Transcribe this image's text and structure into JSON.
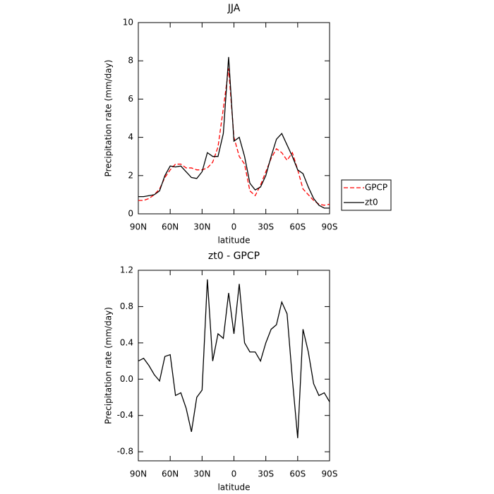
{
  "chart_data": [
    {
      "type": "line",
      "title": "JJA",
      "xlabel": "latitude",
      "ylabel": "Precipitation rate (mm/day)",
      "x": [
        90,
        85,
        80,
        75,
        70,
        65,
        60,
        55,
        50,
        45,
        40,
        35,
        30,
        25,
        20,
        15,
        10,
        5,
        0,
        -5,
        -10,
        -15,
        -20,
        -25,
        -30,
        -35,
        -40,
        -45,
        -50,
        -55,
        -60,
        -65,
        -70,
        -75,
        -80,
        -85,
        -90
      ],
      "series": [
        {
          "name": "GPCP",
          "color": "#ff0000",
          "line_style": "dashed",
          "values": [
            0.7,
            0.7,
            0.8,
            1.0,
            1.3,
            1.9,
            2.3,
            2.6,
            2.6,
            2.4,
            2.4,
            2.3,
            2.3,
            2.4,
            2.7,
            3.5,
            5.5,
            7.6,
            4.0,
            3.0,
            2.6,
            1.2,
            0.95,
            1.5,
            2.2,
            2.9,
            3.4,
            3.2,
            2.8,
            3.2,
            2.3,
            1.3,
            1.0,
            0.7,
            0.5,
            0.45,
            0.5
          ]
        },
        {
          "name": "zt0",
          "color": "#000000",
          "line_style": "solid",
          "values": [
            0.9,
            0.9,
            0.95,
            1.0,
            1.2,
            2.0,
            2.5,
            2.45,
            2.5,
            2.2,
            1.9,
            1.85,
            2.2,
            3.2,
            3.0,
            3.0,
            4.2,
            8.2,
            3.8,
            4.0,
            3.0,
            1.6,
            1.25,
            1.4,
            2.0,
            3.0,
            3.9,
            4.2,
            3.6,
            3.0,
            2.3,
            2.1,
            1.4,
            0.8,
            0.45,
            0.3,
            0.3
          ]
        }
      ],
      "xlim": [
        90,
        -90
      ],
      "ylim": [
        0,
        10
      ],
      "xticks": [
        {
          "value": 90,
          "label": "90N"
        },
        {
          "value": 60,
          "label": "60N"
        },
        {
          "value": 30,
          "label": "30N"
        },
        0,
        {
          "value": -30,
          "label": "30S"
        },
        {
          "value": -60,
          "label": "60S"
        },
        {
          "value": -90,
          "label": "90S"
        }
      ],
      "yticks": [
        0,
        2,
        4,
        6,
        8,
        10
      ],
      "legend": "right"
    },
    {
      "type": "line",
      "title": "zt0 - GPCP",
      "xlabel": "latitude",
      "ylabel": "Precipitation rate (mm/day)",
      "x": [
        90,
        85,
        80,
        75,
        70,
        65,
        60,
        55,
        50,
        45,
        40,
        35,
        30,
        25,
        20,
        15,
        10,
        5,
        0,
        -5,
        -10,
        -15,
        -20,
        -25,
        -30,
        -35,
        -40,
        -45,
        -50,
        -55,
        -60,
        -65,
        -70,
        -75,
        -80,
        -85,
        -90
      ],
      "color": "#000000",
      "values": [
        0.2,
        0.23,
        0.15,
        0.05,
        -0.02,
        0.25,
        0.27,
        -0.18,
        -0.15,
        -0.32,
        -0.58,
        -0.2,
        -0.12,
        1.1,
        0.2,
        0.5,
        0.45,
        0.95,
        0.5,
        1.05,
        0.4,
        0.3,
        0.3,
        0.2,
        0.4,
        0.55,
        0.6,
        0.85,
        0.72,
        0.0,
        -0.65,
        0.55,
        0.3,
        -0.05,
        -0.18,
        -0.15,
        -0.25
      ],
      "xlim": [
        90,
        -90
      ],
      "ylim": [
        -0.9,
        1.2
      ],
      "xticks": [
        {
          "value": 90,
          "label": "90N"
        },
        {
          "value": 60,
          "label": "60N"
        },
        {
          "value": 30,
          "label": "30N"
        },
        0,
        {
          "value": -30,
          "label": "30S"
        },
        {
          "value": -60,
          "label": "60S"
        },
        {
          "value": -90,
          "label": "90S"
        }
      ],
      "yticks": [
        {
          "value": -0.8,
          "label": "-0.8"
        },
        {
          "value": -0.4,
          "label": "-0.4"
        },
        {
          "value": 0,
          "label": "0.0"
        },
        {
          "value": 0.4,
          "label": "0.4"
        },
        {
          "value": 0.8,
          "label": "0.8"
        },
        {
          "value": 1.2,
          "label": "1.2"
        }
      ]
    }
  ]
}
